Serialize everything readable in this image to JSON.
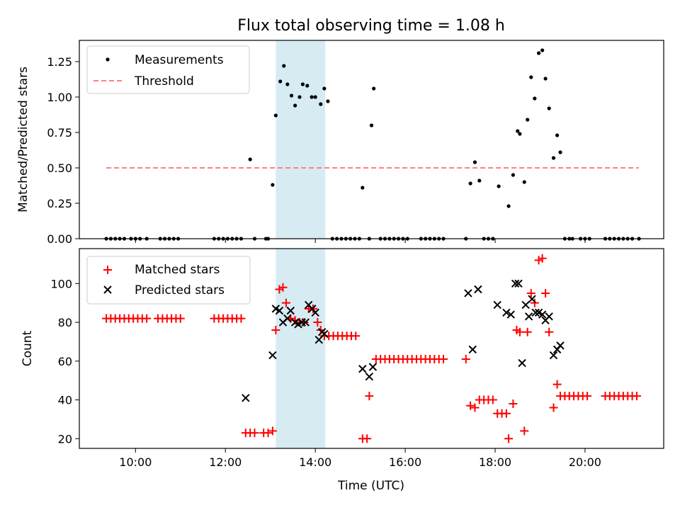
{
  "figure": {
    "title": "Flux total observing time = 1.08 h",
    "xlabel": "Time (UTC)",
    "x_ticks": [
      "10:00",
      "12:00",
      "14:00",
      "16:00",
      "18:00",
      "20:00"
    ],
    "x_tick_values": [
      10,
      12,
      14,
      16,
      18,
      20
    ],
    "xlim": [
      8.75,
      21.75
    ],
    "shaded_interval": [
      13.12,
      14.22
    ],
    "shade_color": "#add8e6"
  },
  "chart_data": [
    {
      "type": "scatter",
      "ylabel": "Matched/Predicted stars",
      "ylim": [
        0,
        1.4
      ],
      "y_ticks": [
        "0.00",
        "0.25",
        "0.50",
        "0.75",
        "1.00",
        "1.25"
      ],
      "y_tick_values": [
        0,
        0.25,
        0.5,
        0.75,
        1.0,
        1.25
      ],
      "legend": "upper left",
      "series": [
        {
          "name": "Measurements",
          "marker": "dot",
          "color": "#000000",
          "x": [
            9.35,
            9.45,
            9.55,
            9.65,
            9.75,
            9.9,
            10.0,
            10.1,
            10.25,
            10.55,
            10.65,
            10.75,
            10.85,
            10.95,
            11.75,
            11.85,
            11.95,
            12.05,
            12.15,
            12.25,
            12.35,
            12.55,
            12.65,
            12.9,
            12.95,
            13.05,
            13.12,
            13.22,
            13.3,
            13.38,
            13.47,
            13.55,
            13.65,
            13.72,
            13.82,
            13.92,
            14.0,
            14.12,
            14.2,
            14.28,
            14.38,
            14.48,
            14.58,
            14.68,
            14.78,
            14.88,
            14.98,
            15.05,
            15.2,
            15.25,
            15.3,
            15.45,
            15.55,
            15.65,
            15.75,
            15.85,
            15.95,
            16.05,
            16.35,
            16.45,
            16.55,
            16.65,
            16.75,
            16.85,
            17.35,
            17.45,
            17.55,
            17.65,
            17.75,
            17.85,
            17.95,
            18.08,
            18.3,
            18.4,
            18.5,
            18.55,
            18.65,
            18.72,
            18.8,
            18.88,
            18.97,
            19.05,
            19.12,
            19.2,
            19.3,
            19.38,
            19.45,
            19.55,
            19.65,
            19.72,
            19.9,
            20.0,
            20.1,
            20.45,
            20.55,
            20.65,
            20.75,
            20.85,
            20.95,
            21.05,
            21.2
          ],
          "y": [
            0,
            0,
            0,
            0,
            0,
            0,
            0,
            0,
            0,
            0,
            0,
            0,
            0,
            0,
            0,
            0,
            0,
            0,
            0,
            0,
            0,
            0.56,
            0,
            0,
            0,
            0.38,
            0.87,
            1.11,
            1.22,
            1.09,
            1.01,
            0.94,
            1.0,
            1.09,
            1.08,
            1.0,
            1.0,
            0.95,
            1.06,
            0.97,
            0,
            0,
            0,
            0,
            0,
            0,
            0,
            0.36,
            0,
            0.8,
            1.06,
            0,
            0,
            0,
            0,
            0,
            0,
            0,
            0,
            0,
            0,
            0,
            0,
            0,
            0,
            0.39,
            0.54,
            0.41,
            0,
            0,
            0,
            0.37,
            0.23,
            0.45,
            0.76,
            0.74,
            0.4,
            0.84,
            1.14,
            0.99,
            1.31,
            1.33,
            1.13,
            0.92,
            0.57,
            0.73,
            0.61,
            0,
            0,
            0,
            0,
            0,
            0,
            0,
            0,
            0,
            0,
            0,
            0,
            0,
            0
          ]
        },
        {
          "name": "Threshold",
          "marker": "dashed-line",
          "color": "#ff7f7f",
          "x": [
            9.35,
            21.2
          ],
          "y": [
            0.5,
            0.5
          ]
        }
      ]
    },
    {
      "type": "scatter",
      "ylabel": "Count",
      "ylim": [
        15,
        118
      ],
      "y_ticks": [
        "20",
        "40",
        "60",
        "80",
        "100"
      ],
      "y_tick_values": [
        20,
        40,
        60,
        80,
        100
      ],
      "legend": "upper left",
      "series": [
        {
          "name": "Matched stars",
          "marker": "plus",
          "color": "#ff0000",
          "x": [
            9.35,
            9.45,
            9.55,
            9.65,
            9.75,
            9.85,
            9.95,
            10.05,
            10.15,
            10.25,
            10.5,
            10.6,
            10.7,
            10.8,
            10.9,
            11.0,
            11.75,
            11.85,
            11.95,
            12.05,
            12.15,
            12.25,
            12.35,
            12.45,
            12.55,
            12.65,
            12.85,
            12.95,
            13.05,
            13.12,
            13.2,
            13.28,
            13.35,
            13.45,
            13.55,
            13.65,
            13.75,
            13.85,
            13.95,
            14.05,
            14.12,
            14.2,
            14.3,
            14.4,
            14.5,
            14.6,
            14.7,
            14.8,
            14.9,
            15.05,
            15.15,
            15.2,
            15.35,
            15.45,
            15.55,
            15.65,
            15.75,
            15.85,
            15.95,
            16.05,
            16.15,
            16.25,
            16.35,
            16.45,
            16.55,
            16.65,
            16.75,
            16.85,
            17.35,
            17.45,
            17.55,
            17.65,
            17.75,
            17.85,
            17.95,
            18.05,
            18.15,
            18.25,
            18.3,
            18.4,
            18.48,
            18.55,
            18.65,
            18.72,
            18.8,
            18.88,
            18.97,
            19.05,
            19.12,
            19.2,
            19.3,
            19.38,
            19.45,
            19.55,
            19.65,
            19.75,
            19.85,
            19.95,
            20.05,
            20.45,
            20.55,
            20.65,
            20.75,
            20.85,
            20.95,
            21.05,
            21.15
          ],
          "y": [
            82,
            82,
            82,
            82,
            82,
            82,
            82,
            82,
            82,
            82,
            82,
            82,
            82,
            82,
            82,
            82,
            82,
            82,
            82,
            82,
            82,
            82,
            82,
            23,
            23,
            23,
            23,
            23,
            24,
            76,
            97,
            98,
            90,
            82,
            81,
            80,
            80,
            87,
            87,
            80,
            76,
            73,
            73,
            73,
            73,
            73,
            73,
            73,
            73,
            20,
            20,
            42,
            61,
            61,
            61,
            61,
            61,
            61,
            61,
            61,
            61,
            61,
            61,
            61,
            61,
            61,
            61,
            61,
            61,
            37,
            36,
            40,
            40,
            40,
            40,
            33,
            33,
            33,
            20,
            38,
            76,
            75,
            24,
            75,
            95,
            90,
            112,
            113,
            95,
            75,
            36,
            48,
            42,
            42,
            42,
            42,
            42,
            42,
            42,
            42,
            42,
            42,
            42,
            42,
            42,
            42,
            42
          ]
        },
        {
          "name": "Predicted stars",
          "marker": "x",
          "color": "#000000",
          "x": [
            12.45,
            13.05,
            13.12,
            13.2,
            13.28,
            13.38,
            13.45,
            13.55,
            13.62,
            13.7,
            13.78,
            13.85,
            13.93,
            14.0,
            14.08,
            14.15,
            14.2,
            15.05,
            15.2,
            15.28,
            17.4,
            17.5,
            17.62,
            18.05,
            18.25,
            18.35,
            18.45,
            18.52,
            18.6,
            18.68,
            18.75,
            18.82,
            18.9,
            18.97,
            19.05,
            19.12,
            19.2,
            19.3,
            19.38,
            19.45
          ],
          "y": [
            41,
            63,
            87,
            86,
            80,
            82,
            86,
            80,
            79,
            80,
            80,
            89,
            87,
            85,
            71,
            75,
            74,
            56,
            52,
            57,
            95,
            66,
            97,
            89,
            85,
            84,
            100,
            100,
            59,
            89,
            83,
            92,
            85,
            85,
            84,
            81,
            83,
            63,
            66,
            68
          ]
        }
      ]
    }
  ]
}
